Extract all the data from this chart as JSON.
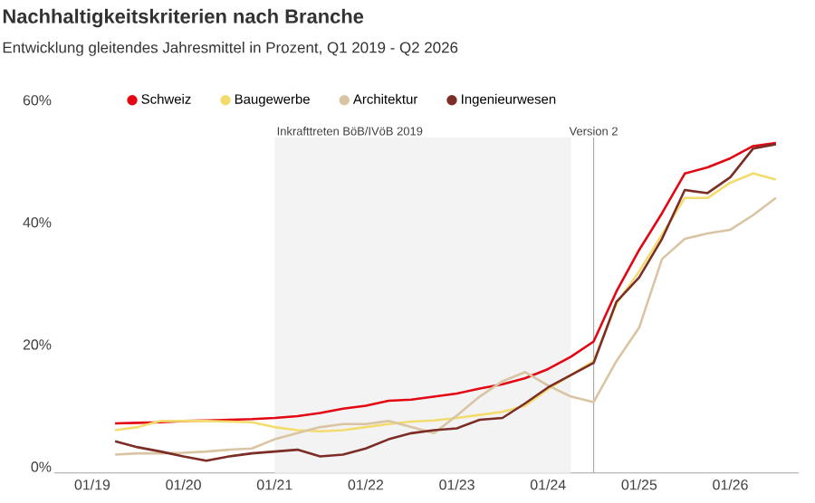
{
  "chart_data": {
    "type": "line",
    "title": "Nachhaltigkeitskriterien nach Branche",
    "subtitle": "Entwicklung gleitendes Jahresmittel in Prozent, Q1 2019 - Q2 2026",
    "x": [
      "2019-04",
      "2019-07",
      "2019-10",
      "2020-01",
      "2020-04",
      "2020-07",
      "2020-10",
      "2021-01",
      "2021-04",
      "2021-07",
      "2021-10",
      "2022-01",
      "2022-04",
      "2022-07",
      "2022-10",
      "2023-01",
      "2023-04",
      "2023-07",
      "2023-10",
      "2024-01",
      "2024-04",
      "2024-07",
      "2024-10",
      "2025-01",
      "2025-04",
      "2025-07",
      "2025-10",
      "2026-01",
      "2026-04",
      "2026-07"
    ],
    "series": [
      {
        "name": "Schweiz",
        "color": "#e30613",
        "values": [
          7.1,
          7.2,
          7.3,
          7.5,
          7.6,
          7.7,
          7.8,
          8.0,
          8.3,
          8.8,
          9.5,
          10.0,
          10.8,
          11.0,
          11.5,
          12.0,
          12.8,
          13.5,
          14.5,
          16.0,
          18.0,
          20.5,
          28.7,
          35.5,
          41.5,
          48,
          49,
          50.5,
          52.5,
          53
        ]
      },
      {
        "name": "Baugewerbe",
        "color": "#f2dc6e",
        "values": [
          6.0,
          6.5,
          7.5,
          7.5,
          7.5,
          7.4,
          7.3,
          6.5,
          6.0,
          5.8,
          6.0,
          6.5,
          7.0,
          7.4,
          7.6,
          8.0,
          8.5,
          9.0,
          10.0,
          12.7,
          15.0,
          17.3,
          26.7,
          32,
          38,
          44,
          44,
          46.5,
          48,
          47
        ]
      },
      {
        "name": "Architektur",
        "color": "#d9c4a3",
        "values": [
          2.0,
          2.2,
          2.2,
          2.3,
          2.5,
          2.8,
          3.0,
          4.5,
          5.5,
          6.5,
          7.0,
          7.0,
          7.5,
          6.5,
          5.5,
          8.4,
          11.5,
          14,
          15.5,
          13.3,
          11.5,
          10.6,
          17.3,
          22.8,
          34,
          37.3,
          38.2,
          38.8,
          41.2,
          44
        ]
      },
      {
        "name": "Ingenieurwesen",
        "color": "#7b2d26",
        "values": [
          4.2,
          3.2,
          2.5,
          1.7,
          1.0,
          1.7,
          2.2,
          2.5,
          2.8,
          1.7,
          2.0,
          3.0,
          4.5,
          5.5,
          6.0,
          6.3,
          7.7,
          8.0,
          10.4,
          13.0,
          15.0,
          17.0,
          27,
          31,
          37.3,
          45.3,
          44.8,
          47.4,
          52.1,
          52.8
        ]
      }
    ],
    "xlim": [
      "2018-08",
      "2026-10"
    ],
    "xticks": [
      {
        "value": "2019-01",
        "label": "01/19"
      },
      {
        "value": "2020-01",
        "label": "01/20"
      },
      {
        "value": "2021-01",
        "label": "01/21"
      },
      {
        "value": "2022-01",
        "label": "01/22"
      },
      {
        "value": "2023-01",
        "label": "01/23"
      },
      {
        "value": "2024-01",
        "label": "01/24"
      },
      {
        "value": "2025-01",
        "label": "01/25"
      },
      {
        "value": "2026-01",
        "label": "01/26"
      }
    ],
    "ylim": [
      -1,
      60
    ],
    "yticks": [
      {
        "value": 0,
        "label": "0%"
      },
      {
        "value": 20,
        "label": "20%"
      },
      {
        "value": 40,
        "label": "40%"
      },
      {
        "value": 60,
        "label": "60%"
      }
    ],
    "bands": [
      {
        "axis": "x",
        "from": "2021-01",
        "to": "2024-04",
        "label": "Inkrafttreten BöB/IVöB 2019",
        "color": "#f3f3f3"
      }
    ],
    "ref_lines": [
      {
        "axis": "x",
        "value": "2024-07",
        "label": "Version 2",
        "color": "#aaaaaa"
      }
    ],
    "legend": "top",
    "grid": false
  }
}
